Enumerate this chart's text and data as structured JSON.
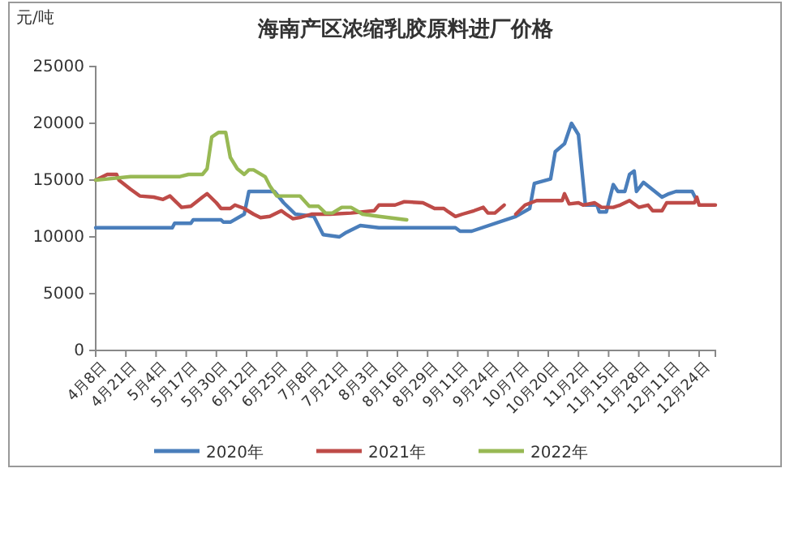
{
  "chart_data": {
    "type": "line",
    "title": "海南产区浓缩乳胶原料进厂价格",
    "ylabel": "元/吨",
    "xlim": [
      "--04-08",
      "--12-31"
    ],
    "xticks": [
      {
        "value": "--04-08",
        "label": "4月8日"
      },
      {
        "value": "--04-21",
        "label": "4月21日"
      },
      {
        "value": "--05-04",
        "label": "5月4日"
      },
      {
        "value": "--05-17",
        "label": "5月17日"
      },
      {
        "value": "--05-30",
        "label": "5月30日"
      },
      {
        "value": "--06-12",
        "label": "6月12日"
      },
      {
        "value": "--06-25",
        "label": "6月25日"
      },
      {
        "value": "--07-08",
        "label": "7月8日"
      },
      {
        "value": "--07-21",
        "label": "7月21日"
      },
      {
        "value": "--08-03",
        "label": "8月3日"
      },
      {
        "value": "--08-16",
        "label": "8月16日"
      },
      {
        "value": "--08-29",
        "label": "8月29日"
      },
      {
        "value": "--09-11",
        "label": "9月11日"
      },
      {
        "value": "--09-24",
        "label": "9月24日"
      },
      {
        "value": "--10-07",
        "label": "10月7日"
      },
      {
        "value": "--10-20",
        "label": "10月20日"
      },
      {
        "value": "--11-02",
        "label": "11月2日"
      },
      {
        "value": "--11-15",
        "label": "11月15日"
      },
      {
        "value": "--11-28",
        "label": "11月28日"
      },
      {
        "value": "--12-11",
        "label": "12月11日"
      },
      {
        "value": "--12-24",
        "label": "12月24日"
      }
    ],
    "ylim": [
      0,
      25000
    ],
    "yticks": [
      0,
      5000,
      10000,
      15000,
      20000,
      25000
    ],
    "grid": false,
    "legend": "bottom",
    "marker": "none",
    "line_style": "solid",
    "series": [
      {
        "name": "2020年",
        "color": "#4a7ebb",
        "x": [
          "--04-08",
          "--05-11",
          "--05-12",
          "--05-19",
          "--05-20",
          "--06-01",
          "--06-02",
          "--06-05",
          "--06-11",
          "--06-13",
          "--06-24",
          "--06-28",
          "--07-03",
          "--07-11",
          "--07-15",
          "--07-22",
          "--07-25",
          "--07-31",
          "--08-08",
          "--09-10",
          "--09-12",
          "--09-17",
          "--10-06",
          "--10-12",
          "--10-14",
          "--10-21",
          "--10-23",
          "--10-27",
          "--10-30",
          "--11-02",
          "--11-05",
          "--11-10",
          "--11-11",
          "--11-14",
          "--11-17",
          "--11-19",
          "--11-22",
          "--11-24",
          "--11-26",
          "--11-27",
          "--11-30",
          "--12-08",
          "--12-11",
          "--12-14",
          "--12-21",
          "--12-23"
        ],
        "values": [
          10800,
          10800,
          11200,
          11200,
          11500,
          11500,
          11300,
          11300,
          12000,
          14000,
          14000,
          13000,
          12000,
          11800,
          10200,
          10000,
          10400,
          11000,
          10800,
          10800,
          10500,
          10500,
          11800,
          12500,
          14700,
          15100,
          17500,
          18200,
          20000,
          19000,
          12800,
          12800,
          12200,
          12200,
          14600,
          14000,
          14000,
          15500,
          15800,
          14000,
          14800,
          13500,
          13800,
          14000,
          14000,
          13200
        ]
      },
      {
        "name": "2021年",
        "color": "#be4b48",
        "x": [
          "--04-08",
          "--04-13",
          "--04-17",
          "--04-18",
          "--04-23",
          "--04-27",
          "--05-03",
          "--05-07",
          "--05-10",
          "--05-15",
          "--05-19",
          "--05-24",
          "--05-26",
          "--05-30",
          "--06-01",
          "--06-05",
          "--06-07",
          "--06-11",
          "--06-15",
          "--06-18",
          "--06-22",
          "--06-27",
          "--06-29",
          "--07-02",
          "--07-05",
          "--07-10",
          "--07-18",
          "--07-27",
          "--08-06",
          "--08-08",
          "--08-15",
          "--08-19",
          "--08-27",
          "--09-01",
          "--09-05",
          "--09-07",
          "--09-10",
          "--09-13",
          "--09-18",
          "--09-22",
          "--09-24",
          "--09-27",
          "--10-01",
          "--10-03",
          "--10-06",
          "--10-10",
          "--10-15",
          "--10-26",
          "--10-27",
          "--10-29",
          "--11-02",
          "--11-04",
          "--11-09",
          "--11-12",
          "--11-17",
          "--11-20",
          "--11-24",
          "--11-28",
          "--12-02",
          "--12-04",
          "--12-08",
          "--12-10",
          "--12-22",
          "--12-23",
          "--12-24",
          "--12-31"
        ],
        "values": [
          15000,
          15500,
          15500,
          15000,
          14200,
          13600,
          13500,
          13300,
          13600,
          12600,
          12700,
          13500,
          13800,
          13000,
          12500,
          12500,
          12800,
          12500,
          12000,
          11700,
          11800,
          12300,
          12000,
          11600,
          11700,
          12000,
          12000,
          12100,
          12300,
          12800,
          12800,
          13100,
          13000,
          12500,
          12500,
          12200,
          11800,
          12000,
          12300,
          12600,
          12100,
          12100,
          12800,
          null,
          12000,
          12800,
          13200,
          13200,
          13800,
          12900,
          13000,
          12800,
          13000,
          12600,
          12600,
          12800,
          13200,
          12600,
          12800,
          12300,
          12300,
          13000,
          13000,
          13500,
          12800,
          12800
        ]
      },
      {
        "name": "2022年",
        "color": "#98b954",
        "x": [
          "--04-08",
          "--04-13",
          "--04-23",
          "--05-14",
          "--05-18",
          "--05-24",
          "--05-26",
          "--05-28",
          "--05-31",
          "--06-03",
          "--06-05",
          "--06-08",
          "--06-11",
          "--06-13",
          "--06-15",
          "--06-20",
          "--06-22",
          "--06-25",
          "--07-05",
          "--07-09",
          "--07-13",
          "--07-16",
          "--07-19",
          "--07-23",
          "--07-27",
          "--08-01",
          "--08-08",
          "--08-20"
        ],
        "values": [
          15000,
          15100,
          15300,
          15300,
          15500,
          15500,
          16000,
          18800,
          19200,
          19200,
          17000,
          16000,
          15500,
          15900,
          15900,
          15300,
          14500,
          13600,
          13600,
          12700,
          12700,
          12100,
          12100,
          12600,
          12600,
          12000,
          11800,
          11500
        ]
      }
    ]
  }
}
